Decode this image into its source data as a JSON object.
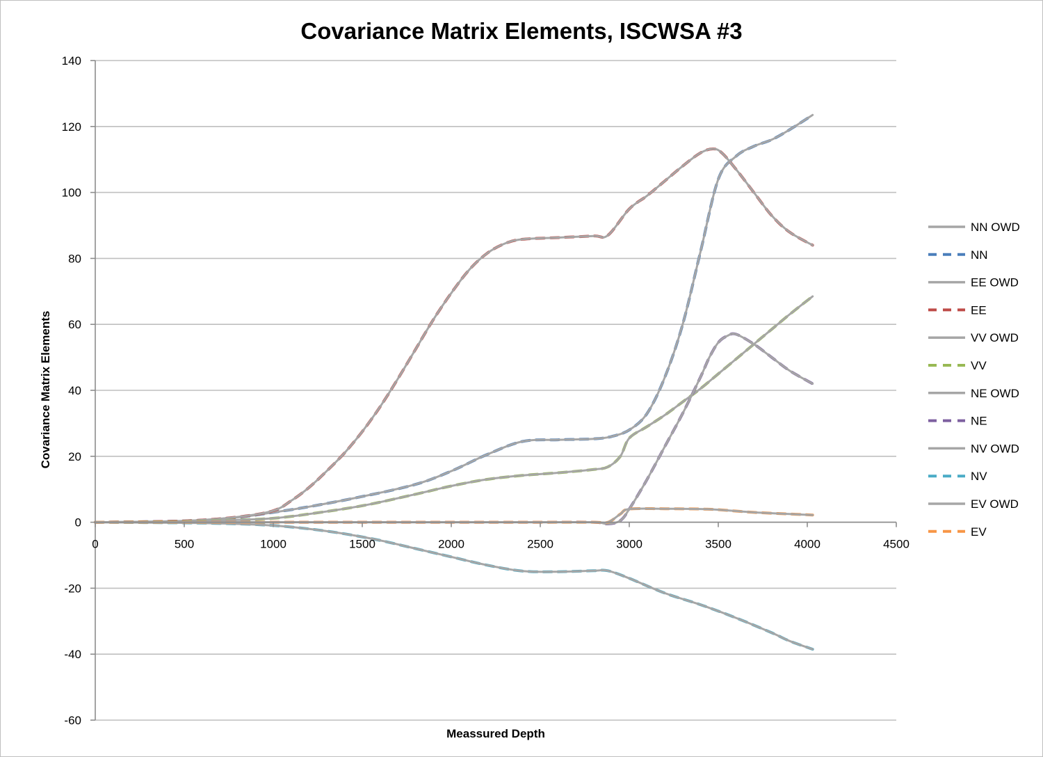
{
  "chart_data": {
    "type": "line",
    "title": "Covariance Matrix Elements, ISCWSA #3",
    "xlabel": "Meassured Depth",
    "ylabel": "Covariance Matrix Elements",
    "xlim": [
      0,
      4500
    ],
    "ylim": [
      -60,
      140
    ],
    "xticks": [
      0,
      500,
      1000,
      1500,
      2000,
      2500,
      3000,
      3500,
      4000,
      4500
    ],
    "yticks": [
      -60,
      -40,
      -20,
      0,
      20,
      40,
      60,
      80,
      100,
      120,
      140
    ],
    "grid": "horizontal",
    "legend_position": "right",
    "series": [
      {
        "name": "NN OWD",
        "style": "solid",
        "color": "#a6a6a6",
        "x": [
          0,
          500,
          800,
          1000,
          1200,
          1500,
          1800,
          2000,
          2200,
          2400,
          2600,
          2800,
          2900,
          3000,
          3100,
          3200,
          3300,
          3400,
          3500,
          3600,
          3700,
          3800,
          3900,
          4030
        ],
        "y": [
          0,
          0.4,
          1.5,
          3,
          4.7,
          7.8,
          11.5,
          15.5,
          20.5,
          24.5,
          25,
          25.3,
          26,
          28,
          33,
          44,
          60,
          82,
          104,
          111,
          114,
          116,
          119,
          123.5
        ]
      },
      {
        "name": "NN",
        "style": "dashed",
        "color": "#4a7ebb",
        "x": [
          0,
          500,
          800,
          1000,
          1200,
          1500,
          1800,
          2000,
          2200,
          2400,
          2600,
          2800,
          2900,
          3000,
          3100,
          3200,
          3300,
          3400,
          3500,
          3600,
          3700,
          3800,
          3900,
          4030
        ],
        "y": [
          0,
          0.4,
          1.5,
          3,
          4.7,
          7.8,
          11.5,
          15.5,
          20.5,
          24.5,
          25,
          25.3,
          26,
          28,
          33,
          44,
          60,
          82,
          104,
          111,
          114,
          116,
          119,
          123.5
        ]
      },
      {
        "name": "EE OWD",
        "style": "solid",
        "color": "#a6a6a6",
        "x": [
          0,
          500,
          800,
          1000,
          1100,
          1200,
          1300,
          1400,
          1500,
          1600,
          1700,
          1800,
          1900,
          2000,
          2100,
          2200,
          2300,
          2400,
          2600,
          2800,
          2880,
          3000,
          3100,
          3200,
          3300,
          3400,
          3470,
          3520,
          3600,
          3700,
          3800,
          3900,
          4030
        ],
        "y": [
          0,
          0.4,
          1.6,
          3.5,
          6.5,
          10.5,
          15.5,
          21,
          27.5,
          35,
          43.5,
          52.5,
          61.5,
          69.5,
          76.5,
          81.5,
          84.5,
          85.8,
          86.3,
          86.8,
          87,
          95,
          99,
          103.5,
          108,
          112,
          113.2,
          112,
          107,
          100,
          93,
          88,
          84
        ]
      },
      {
        "name": "EE",
        "style": "dashed",
        "color": "#be4b48",
        "x": [
          0,
          500,
          800,
          1000,
          1100,
          1200,
          1300,
          1400,
          1500,
          1600,
          1700,
          1800,
          1900,
          2000,
          2100,
          2200,
          2300,
          2400,
          2600,
          2800,
          2880,
          3000,
          3100,
          3200,
          3300,
          3400,
          3470,
          3520,
          3600,
          3700,
          3800,
          3900,
          4030
        ],
        "y": [
          0,
          0.4,
          1.6,
          3.5,
          6.5,
          10.5,
          15.5,
          21,
          27.5,
          35,
          43.5,
          52.5,
          61.5,
          69.5,
          76.5,
          81.5,
          84.5,
          85.8,
          86.3,
          86.8,
          87,
          95,
          99,
          103.5,
          108,
          112,
          113.2,
          112,
          107,
          100,
          93,
          88,
          84
        ]
      },
      {
        "name": "VV OWD",
        "style": "solid",
        "color": "#a6a6a6",
        "x": [
          0,
          500,
          800,
          1000,
          1200,
          1500,
          1800,
          2000,
          2200,
          2400,
          2600,
          2800,
          2880,
          2950,
          3000,
          3100,
          3200,
          3300,
          3400,
          3500,
          3600,
          3700,
          3800,
          3900,
          4030
        ],
        "y": [
          0,
          0.2,
          0.7,
          1.2,
          2.5,
          5,
          8.5,
          11,
          13,
          14.2,
          15,
          16,
          16.8,
          20,
          25.5,
          29,
          32.5,
          36.5,
          40.5,
          45,
          49.5,
          54,
          58.5,
          63,
          68.5
        ]
      },
      {
        "name": "VV",
        "style": "dashed",
        "color": "#98b954",
        "x": [
          0,
          500,
          800,
          1000,
          1200,
          1500,
          1800,
          2000,
          2200,
          2400,
          2600,
          2800,
          2880,
          2950,
          3000,
          3100,
          3200,
          3300,
          3400,
          3500,
          3600,
          3700,
          3800,
          3900,
          4030
        ],
        "y": [
          0,
          0.2,
          0.7,
          1.2,
          2.5,
          5,
          8.5,
          11,
          13,
          14.2,
          15,
          16,
          16.8,
          20,
          25.5,
          29,
          32.5,
          36.5,
          40.5,
          45,
          49.5,
          54,
          58.5,
          63,
          68.5
        ]
      },
      {
        "name": "NE OWD",
        "style": "solid",
        "color": "#a6a6a6",
        "x": [
          0,
          500,
          1000,
          1500,
          2000,
          2500,
          2800,
          2880,
          2950,
          3000,
          3100,
          3200,
          3300,
          3400,
          3450,
          3500,
          3550,
          3600,
          3700,
          3800,
          3900,
          4030
        ],
        "y": [
          0,
          0,
          0,
          0,
          0,
          0,
          0,
          -0.5,
          0.5,
          4,
          13,
          23,
          33,
          44,
          50,
          54.5,
          56.5,
          57,
          54,
          50,
          46,
          42
        ]
      },
      {
        "name": "NE",
        "style": "dashed",
        "color": "#7d60a0",
        "x": [
          0,
          500,
          1000,
          1500,
          2000,
          2500,
          2800,
          2880,
          2950,
          3000,
          3100,
          3200,
          3300,
          3400,
          3450,
          3500,
          3550,
          3600,
          3700,
          3800,
          3900,
          4030
        ],
        "y": [
          0,
          0,
          0,
          0,
          0,
          0,
          0,
          -0.5,
          0.5,
          4,
          13,
          23,
          33,
          44,
          50,
          54.5,
          56.5,
          57,
          54,
          50,
          46,
          42
        ]
      },
      {
        "name": "NV OWD",
        "style": "solid",
        "color": "#a6a6a6",
        "x": [
          0,
          500,
          800,
          1000,
          1200,
          1400,
          1600,
          1800,
          2000,
          2200,
          2400,
          2600,
          2800,
          2880,
          3000,
          3200,
          3400,
          3600,
          3800,
          3900,
          4030
        ],
        "y": [
          0,
          -0.2,
          -0.5,
          -1,
          -2,
          -3.5,
          -5.5,
          -8,
          -10.5,
          -13,
          -14.8,
          -15,
          -14.7,
          -14.7,
          -17,
          -21.5,
          -25,
          -29,
          -33.5,
          -36,
          -38.5
        ]
      },
      {
        "name": "NV",
        "style": "dashed",
        "color": "#4bacc6",
        "x": [
          0,
          500,
          800,
          1000,
          1200,
          1400,
          1600,
          1800,
          2000,
          2200,
          2400,
          2600,
          2800,
          2880,
          3000,
          3200,
          3400,
          3600,
          3800,
          3900,
          4030
        ],
        "y": [
          0,
          -0.2,
          -0.5,
          -1,
          -2,
          -3.5,
          -5.5,
          -8,
          -10.5,
          -13,
          -14.8,
          -15,
          -14.7,
          -14.7,
          -17,
          -21.5,
          -25,
          -29,
          -33.5,
          -36,
          -38.5
        ]
      },
      {
        "name": "EV OWD",
        "style": "solid",
        "color": "#a6a6a6",
        "x": [
          0,
          500,
          1000,
          1500,
          2000,
          2500,
          2800,
          2880,
          2950,
          3000,
          3200,
          3400,
          3500,
          3700,
          3900,
          4030
        ],
        "y": [
          0,
          0,
          0,
          0,
          0,
          0,
          0,
          0,
          2.5,
          4,
          4.1,
          4,
          3.8,
          3,
          2.5,
          2.2
        ]
      },
      {
        "name": "EV",
        "style": "dashed",
        "color": "#f79646",
        "x": [
          0,
          500,
          1000,
          1500,
          2000,
          2500,
          2800,
          2880,
          2950,
          3000,
          3200,
          3400,
          3500,
          3700,
          3900,
          4030
        ],
        "y": [
          0,
          0,
          0,
          0,
          0,
          0,
          0,
          0,
          2.5,
          4,
          4.1,
          4,
          3.8,
          3,
          2.5,
          2.2
        ]
      }
    ],
    "draw_order": [
      1,
      0,
      3,
      2,
      5,
      4,
      7,
      6,
      9,
      8,
      11,
      10
    ]
  }
}
